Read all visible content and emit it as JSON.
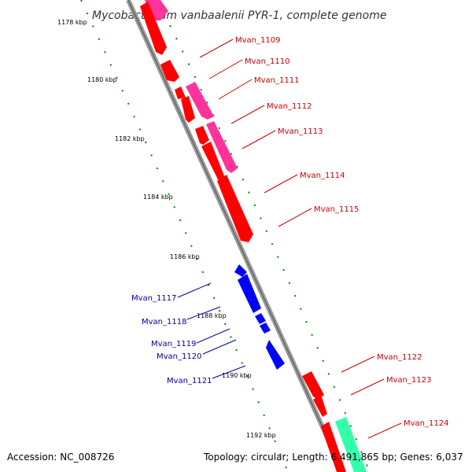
{
  "title": "Mycobacterium vanbaalenii PYR-1, complete genome",
  "accession": "Accession: NC_008726",
  "summary": "Topology: circular; Length: 6,491,865 bp; Genes: 6,037",
  "ticks": [
    "1178 kbp",
    "1180 kbp",
    "1182 kbp",
    "1184 kbp",
    "1186 kbp",
    "1188 kbp",
    "1190 kbp",
    "1192 kbp"
  ],
  "colors": {
    "forward_cds": "#ff0000",
    "rna_or_other": "#ff3399",
    "reverse_cds": "#0000ff",
    "other_feature": "#33ffaa",
    "forward_label": "#cc0000",
    "reverse_label": "#000099",
    "backbone": "#999999",
    "tick_dots": "#008800"
  },
  "forward_genes": [
    {
      "name": "Mvan_1109"
    },
    {
      "name": "Mvan_1110"
    },
    {
      "name": "Mvan_1111"
    },
    {
      "name": "Mvan_1112"
    },
    {
      "name": "Mvan_1113"
    },
    {
      "name": "Mvan_1114"
    },
    {
      "name": "Mvan_1115"
    },
    {
      "name": "Mvan_1122"
    },
    {
      "name": "Mvan_1123"
    },
    {
      "name": "Mvan_1124"
    }
  ],
  "reverse_genes": [
    {
      "name": "Mvan_1117"
    },
    {
      "name": "Mvan_1118"
    },
    {
      "name": "Mvan_1119"
    },
    {
      "name": "Mvan_1120"
    },
    {
      "name": "Mvan_1121"
    }
  ]
}
